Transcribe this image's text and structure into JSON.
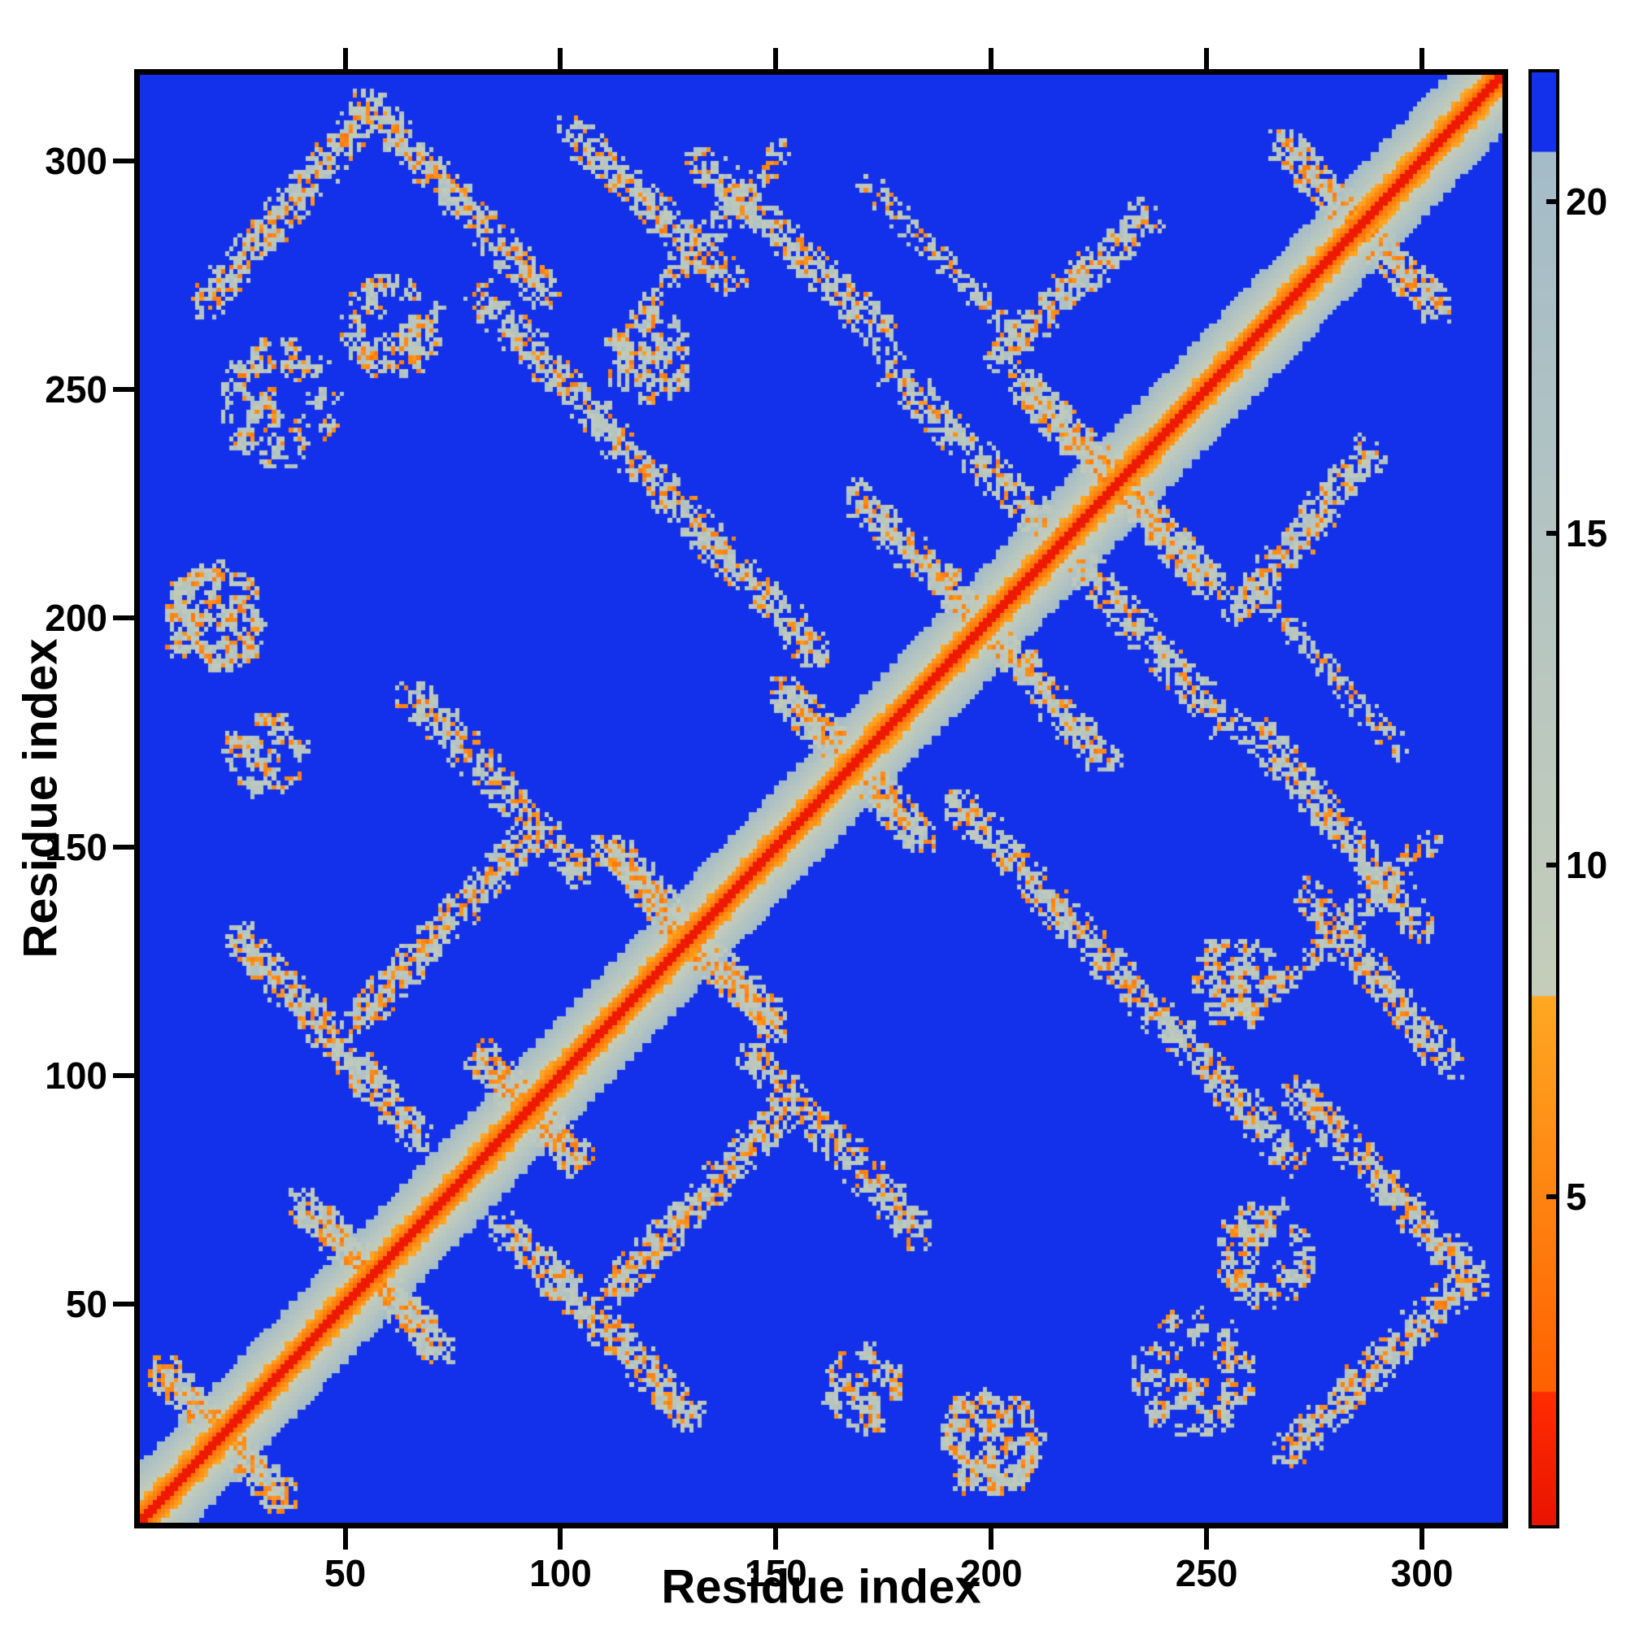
{
  "figure_bg": "#ffffff",
  "axis_color": "#000000",
  "chart_data": {
    "type": "heatmap",
    "title": "",
    "xlabel": "Residue index",
    "ylabel": "Residue index",
    "x_range": [
      1,
      320
    ],
    "y_range": [
      1,
      320
    ],
    "x_ticks": [
      50,
      100,
      150,
      200,
      250,
      300
    ],
    "y_ticks": [
      50,
      100,
      150,
      200,
      250,
      300
    ],
    "grid": false,
    "legend": "none",
    "background_color": "#1331ea",
    "colorbar": {
      "position": "right",
      "range": [
        0,
        22
      ],
      "ticks": [
        5,
        10,
        15,
        20
      ],
      "bands": [
        {
          "max": 2,
          "c1": "#e81400",
          "c2": "#ff2d00"
        },
        {
          "max": 8,
          "c1": "#ff6000",
          "c2": "#ffa822"
        },
        {
          "max": 20.8,
          "c1": "#c5cdba",
          "c2": "#a4bcc8"
        },
        {
          "max": 30,
          "c1": "#1331ea",
          "c2": "#1331ea"
        }
      ]
    },
    "n_residues": 320,
    "background_value": 30,
    "seed": 42,
    "diagonal": {
      "half_width": 14,
      "slope": 1.55,
      "core_value": 0.5,
      "noise": 1.8
    },
    "speckle": {
      "orange_fraction": 0.16,
      "orange_min": 4,
      "orange_span": 3,
      "gray_min": 9.5,
      "gray_span": 8
    },
    "features": [
      {
        "type": "para",
        "from": [
          16,
          270
        ],
        "to": [
          54,
          312
        ],
        "width": 3,
        "density": 0.2
      },
      {
        "type": "anti",
        "from": [
          54,
          314
        ],
        "to": [
          96,
          272
        ],
        "width": 3,
        "density": 0.2
      },
      {
        "type": "anti",
        "from": [
          102,
          308
        ],
        "to": [
          140,
          274
        ],
        "width": 3,
        "density": 0.18
      },
      {
        "type": "anti",
        "from": [
          80,
          272
        ],
        "to": [
          160,
          192
        ],
        "width": 3,
        "density": 0.18
      },
      {
        "type": "para",
        "from": [
          52,
          112
        ],
        "to": [
          92,
          152
        ],
        "width": 3,
        "density": 0.2
      },
      {
        "type": "anti",
        "from": [
          24,
          130
        ],
        "to": [
          66,
          86
        ],
        "width": 3,
        "density": 0.2
      },
      {
        "type": "anti",
        "from": [
          64,
          184
        ],
        "to": [
          104,
          144
        ],
        "width": 3,
        "density": 0.18
      },
      {
        "type": "blob",
        "center": [
          18,
          200
        ],
        "r": 12,
        "count": 110
      },
      {
        "type": "anti",
        "from": [
          176,
          256
        ],
        "to": [
          218,
          216
        ],
        "width": 3,
        "density": 0.18
      },
      {
        "type": "para",
        "from": [
          202,
          258
        ],
        "to": [
          238,
          290
        ],
        "width": 3,
        "density": 0.18
      },
      {
        "type": "anti",
        "from": [
          188,
          210
        ],
        "to": [
          228,
          168
        ],
        "width": 3,
        "density": 0.18
      },
      {
        "type": "anti",
        "from": [
          262,
          176
        ],
        "to": [
          302,
          132
        ],
        "width": 3,
        "density": 0.18
      },
      {
        "type": "blob",
        "center": [
          34,
          248
        ],
        "r": 14,
        "count": 80
      },
      {
        "type": "blob",
        "center": [
          30,
          170
        ],
        "r": 9,
        "count": 50
      },
      {
        "type": "para",
        "from": [
          268,
          118
        ],
        "to": [
          304,
          152
        ],
        "width": 2,
        "density": 0.16
      },
      {
        "type": "anti",
        "from": [
          170,
          298
        ],
        "to": [
          205,
          264
        ],
        "width": 2,
        "density": 0.14
      },
      {
        "type": "blob",
        "center": [
          60,
          265
        ],
        "r": 12,
        "count": 70
      },
      {
        "type": "blob",
        "center": [
          120,
          258
        ],
        "r": 10,
        "count": 60
      }
    ],
    "crossings": [
      {
        "center": 20,
        "half": 14
      },
      {
        "center": 55,
        "half": 16
      },
      {
        "center": 92,
        "half": 12
      },
      {
        "center": 130,
        "half": 20
      },
      {
        "center": 168,
        "half": 16
      },
      {
        "center": 230,
        "half": 22
      },
      {
        "center": 287,
        "half": 18
      }
    ]
  }
}
